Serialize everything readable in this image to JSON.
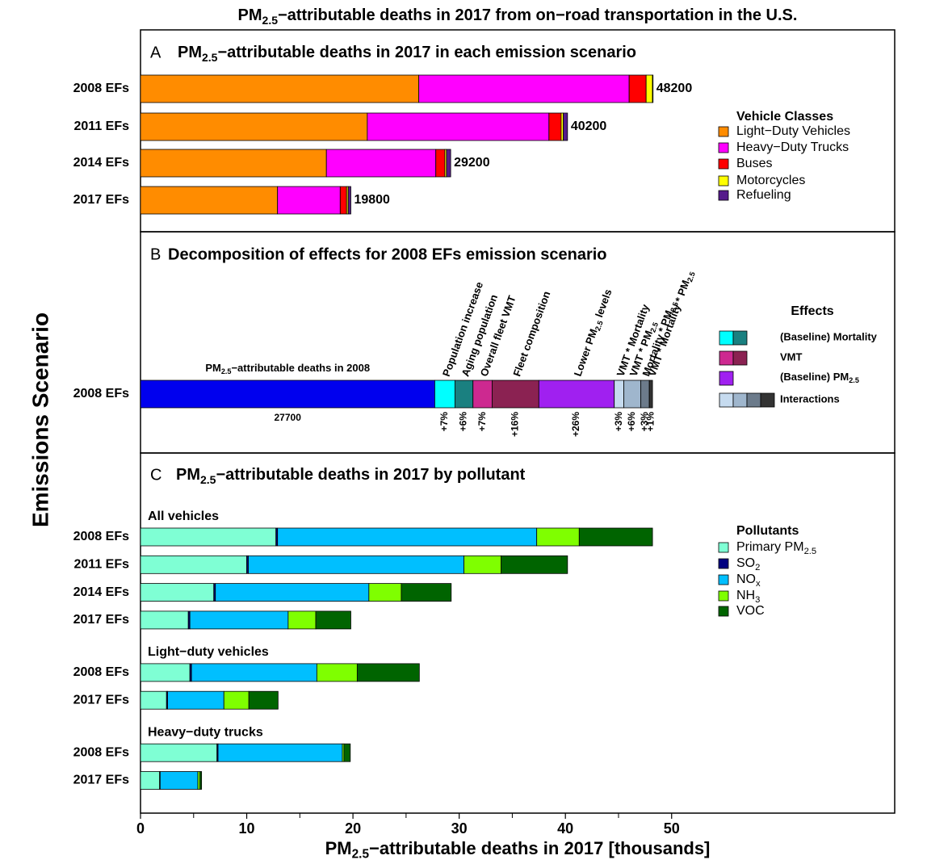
{
  "title": [
    "PM",
    "2.5",
    "−attributable deaths in 2017 from on−road transportation in the U.S."
  ],
  "y_label": "Emissions Scenario",
  "chart_data": [
    {
      "type": "bar",
      "label": "A",
      "title": [
        "PM",
        "2.5",
        "−attributable deaths in 2017 in each emission scenario"
      ],
      "categories": [
        "2008 EFs",
        "2011 EFs",
        "2014 EFs",
        "2017 EFs"
      ],
      "series": [
        {
          "name": "Light−Duty Vehicles",
          "color": "#ff8c00",
          "values": [
            26.2,
            21.35,
            17.5,
            12.9
          ]
        },
        {
          "name": "Heavy−Duty Trucks",
          "color": "#ff00ff",
          "values": [
            19.8,
            17.1,
            10.3,
            5.9
          ]
        },
        {
          "name": "Buses",
          "color": "#ff0000",
          "values": [
            1.6,
            1.15,
            0.85,
            0.6
          ]
        },
        {
          "name": "Motorcycles",
          "color": "#ffff00",
          "values": [
            0.6,
            0.2,
            0.15,
            0.15
          ]
        },
        {
          "name": "Refueling",
          "color": "#551a8b",
          "values": [
            0.05,
            0.4,
            0.4,
            0.25
          ]
        }
      ],
      "totals": [
        48.2,
        40.2,
        29.2,
        19.8
      ],
      "total_labels": [
        "48200",
        "40200",
        "29200",
        "19800"
      ],
      "legend_title": "Vehicle Classes",
      "xlim": [
        0,
        71
      ]
    },
    {
      "type": "decomposition",
      "label": "B",
      "title": "Decomposition of effects for 2008 EFs emission scenario",
      "categories": [
        "2008 EFs"
      ],
      "series": [
        {
          "name": [
            "PM",
            "2.5",
            "−attributable deaths in 2008"
          ],
          "color": "#0000ee",
          "values": [
            27.7
          ],
          "value_labels": [
            "27700"
          ]
        },
        {
          "name": "Population increase",
          "color": "#00ffff",
          "values": [
            1.9
          ],
          "percent_label": "+7%"
        },
        {
          "name": "Aging population",
          "color": "#1a8080",
          "values": [
            1.7
          ],
          "percent_label": "+6%"
        },
        {
          "name": "Overall fleet VMT",
          "color": "#cd2990",
          "values": [
            1.8
          ],
          "percent_label": "+7%"
        },
        {
          "name": "Fleet composition",
          "color": "#8b2252",
          "values": [
            4.4
          ],
          "percent_label": "+16%"
        },
        {
          "name": [
            "Lower PM",
            "2.5",
            " levels"
          ],
          "color": "#a020f0",
          "values": [
            7.1
          ],
          "percent_label": "+26%"
        },
        {
          "name": "VMT * Mortality",
          "color": "#c6dbef",
          "values": [
            0.9
          ],
          "percent_label": "+3%"
        },
        {
          "name": [
            "VMT * PM",
            "2.5"
          ],
          "color": "#9fb6cd",
          "values": [
            1.6
          ],
          "percent_label": "+6%"
        },
        {
          "name": [
            "Mortality * PM",
            "2.5"
          ],
          "color": "#6c7b8b",
          "values": [
            0.8
          ],
          "percent_label": "+3%"
        },
        {
          "name": [
            "VMT * Mortality * PM",
            "2.5"
          ],
          "color": "#333333",
          "values": [
            0.3
          ],
          "percent_label": "+1%"
        }
      ],
      "legend_title": "Effects",
      "legend": [
        {
          "label": "(Baseline) Mortality",
          "colors": [
            "#00ffff",
            "#1a8080"
          ]
        },
        {
          "label": "VMT",
          "colors": [
            "#cd2990",
            "#8b2252"
          ]
        },
        {
          "label": [
            "(Baseline) PM",
            "2.5"
          ],
          "colors": [
            "#a020f0"
          ]
        },
        {
          "label": "Interactions",
          "colors": [
            "#c6dbef",
            "#9fb6cd",
            "#6c7b8b",
            "#333333"
          ]
        }
      ],
      "xlim": [
        0,
        71
      ]
    },
    {
      "type": "bar",
      "label": "C",
      "title": [
        "PM",
        "2.5",
        "−attributable deaths in 2017 by pollutant"
      ],
      "series": [
        {
          "name": [
            "Primary PM",
            "2.5"
          ],
          "color": "#7fffd4"
        },
        {
          "name": [
            "SO",
            "2"
          ],
          "color": "#000080"
        },
        {
          "name": [
            "NO",
            "x"
          ],
          "color": "#00bfff"
        },
        {
          "name": [
            "NH",
            "3"
          ],
          "color": "#7fff00"
        },
        {
          "name": "VOC",
          "color": "#006400"
        }
      ],
      "groups": [
        {
          "name": "All vehicles",
          "categories": [
            "2008 EFs",
            "2011 EFs",
            "2014 EFs",
            "2017 EFs"
          ],
          "values": [
            [
              12.75,
              10.0,
              6.9,
              4.5
            ],
            [
              0.15,
              0.15,
              0.15,
              0.15
            ],
            [
              24.4,
              20.3,
              14.45,
              9.25
            ],
            [
              4.0,
              3.5,
              3.05,
              2.6
            ],
            [
              6.9,
              6.25,
              4.7,
              3.3
            ]
          ]
        },
        {
          "name": "Light−duty vehicles",
          "categories": [
            "2008 EFs",
            "2017 EFs"
          ],
          "values": [
            [
              4.65,
              2.45
            ],
            [
              0.15,
              0.1
            ],
            [
              11.8,
              5.3
            ],
            [
              3.8,
              2.35
            ],
            [
              5.85,
              2.75
            ]
          ]
        },
        {
          "name": "Heavy−duty trucks",
          "categories": [
            "2008 EFs",
            "2017 EFs"
          ],
          "values": [
            [
              7.2,
              1.8
            ],
            [
              0.1,
              0.05
            ],
            [
              11.7,
              3.55
            ],
            [
              0.15,
              0.2
            ],
            [
              0.6,
              0.15
            ]
          ]
        }
      ],
      "legend_title": "Pollutants",
      "xlim": [
        0,
        71
      ],
      "xticks": [
        0,
        10,
        20,
        30,
        40,
        50
      ],
      "xminorticks": [
        5,
        15,
        25,
        35,
        45
      ],
      "x_label": [
        "PM",
        "2.5",
        "−attributable deaths in 2017 [thousands]"
      ]
    }
  ]
}
